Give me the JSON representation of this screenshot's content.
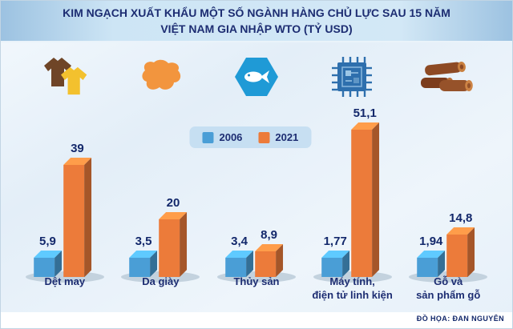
{
  "title": {
    "line1": "KIM NGẠCH XUẤT KHẨU MỘT SỐ NGÀNH HÀNG CHỦ LỰC SAU 15 NĂM",
    "line2": "VIỆT NAM GIA NHẬP WTO (TỶ USD)"
  },
  "credit": "ĐỒ HỌA: ĐAN NGUYÊN",
  "icons": [
    {
      "name": "clothing-icon",
      "category": "Dệt may"
    },
    {
      "name": "leather-icon",
      "category": "Da giày"
    },
    {
      "name": "fish-icon",
      "category": "Thủy sản"
    },
    {
      "name": "chip-icon",
      "category": "Máy tính, điện tử linh kiện"
    },
    {
      "name": "wood-icon",
      "category": "Gỗ và sản phẩm gỗ"
    }
  ],
  "chart_data": {
    "type": "bar",
    "title": "Kim ngạch xuất khẩu một số ngành hàng chủ lực sau 15 năm Việt Nam gia nhập WTO (tỷ USD)",
    "unit": "tỷ USD",
    "categories": [
      "Dệt may",
      "Da giày",
      "Thủy sản",
      "Máy tính,\nđiện tử linh kiện",
      "Gỗ và\nsản phẩm gỗ"
    ],
    "series": [
      {
        "name": "2006",
        "color": "#4a9ed6",
        "values": [
          5.9,
          3.5,
          3.4,
          1.77,
          1.94
        ],
        "labels": [
          "5,9",
          "3,5",
          "3,4",
          "1,77",
          "1,94"
        ]
      },
      {
        "name": "2021",
        "color": "#ec7b3a",
        "values": [
          39,
          20,
          8.9,
          51.1,
          14.8
        ],
        "labels": [
          "39",
          "20",
          "8,9",
          "51,1",
          "14,8"
        ]
      }
    ],
    "ylim": [
      0,
      55
    ],
    "grid": false,
    "legend_position": "top-center"
  }
}
